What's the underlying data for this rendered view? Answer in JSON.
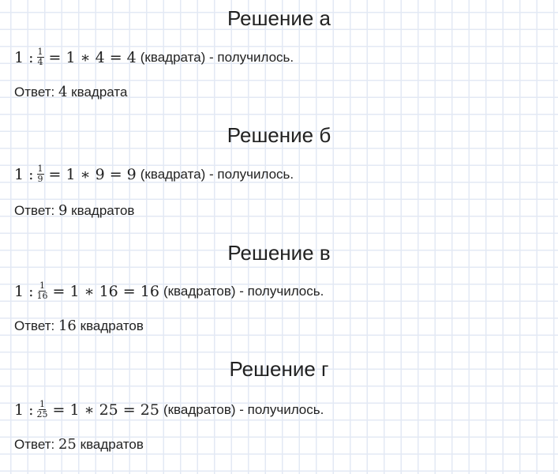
{
  "sections": [
    {
      "title": "Решение а",
      "lhs": "1 :",
      "num": "1",
      "den": "4",
      "rhs": "= 1 ∗ 4 = 4",
      "unit": "(квадрата) - получилось.",
      "answer_label": "Ответ:",
      "answer_value": "4",
      "answer_unit": "квадрата"
    },
    {
      "title": "Решение б",
      "lhs": "1 :",
      "num": "1",
      "den": "9",
      "rhs": "= 1 ∗ 9 = 9",
      "unit": "(квадрата) - получилось.",
      "answer_label": "Ответ:",
      "answer_value": "9",
      "answer_unit": "квадратов"
    },
    {
      "title": "Решение в",
      "lhs": "1 :",
      "num": "1",
      "den": "16",
      "rhs": "= 1 ∗ 16 = 16",
      "unit": "(квадратов) - получилось.",
      "answer_label": "Ответ:",
      "answer_value": "16",
      "answer_unit": "квадратов"
    },
    {
      "title": "Решение г",
      "lhs": "1 :",
      "num": "1",
      "den": "25",
      "rhs": "= 1 ∗ 25 = 25",
      "unit": "(квадратов) - получилось.",
      "answer_label": "Ответ:",
      "answer_value": "25",
      "answer_unit": "квадратов"
    }
  ]
}
